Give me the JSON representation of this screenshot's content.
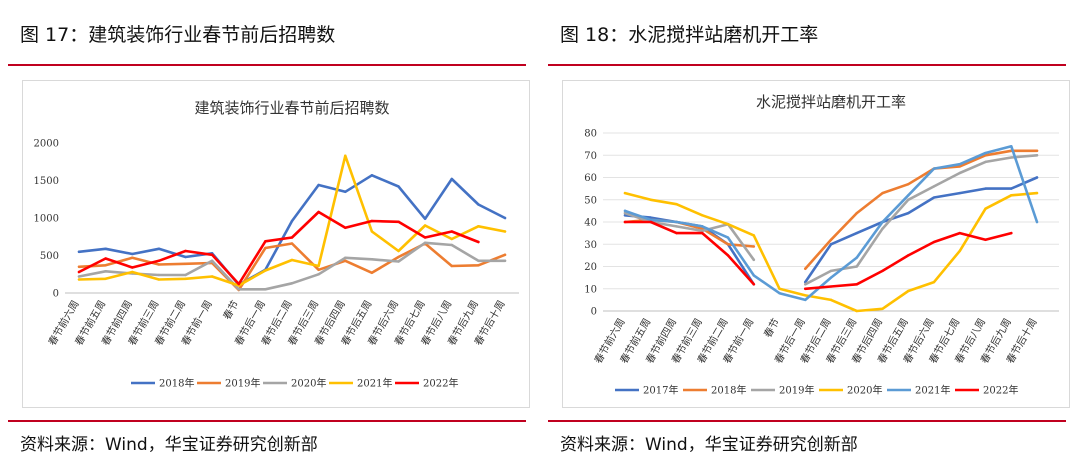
{
  "left": {
    "fig_title": "图 17：建筑装饰行业春节前后招聘数",
    "source": "资料来源：Wind，华宝证券研究创新部",
    "chart_data": {
      "type": "line",
      "title": "建筑装饰行业春节前后招聘数",
      "categories": [
        "春节前六周",
        "春节前五周",
        "春节前四周",
        "春节前三周",
        "春节前二周",
        "春节前一周",
        "春节",
        "春节后一周",
        "春节后二周",
        "春节后三周",
        "春节后四周",
        "春节后五周",
        "春节后六周",
        "春节后七周",
        "春节后八周",
        "春节后九周",
        "春节后十周"
      ],
      "ylim": [
        0,
        2000
      ],
      "yticks": [
        0,
        500,
        1000,
        1500,
        2000
      ],
      "legend_position": "bottom",
      "series": [
        {
          "name": "2018年",
          "color": "#4472c4",
          "values": [
            550,
            590,
            520,
            590,
            480,
            530,
            110,
            310,
            960,
            1440,
            1350,
            1570,
            1420,
            990,
            1520,
            1180,
            1000
          ]
        },
        {
          "name": "2019年",
          "color": "#ed7d31",
          "values": [
            350,
            370,
            470,
            380,
            390,
            400,
            40,
            600,
            660,
            310,
            430,
            270,
            480,
            660,
            360,
            370,
            510
          ]
        },
        {
          "name": "2020年",
          "color": "#a5a5a5",
          "values": [
            220,
            290,
            260,
            240,
            240,
            430,
            50,
            50,
            130,
            250,
            470,
            450,
            420,
            670,
            640,
            430,
            430
          ]
        },
        {
          "name": "2021年",
          "color": "#ffc000",
          "values": [
            180,
            190,
            280,
            180,
            190,
            220,
            100,
            300,
            440,
            360,
            1830,
            820,
            560,
            900,
            720,
            890,
            820
          ]
        },
        {
          "name": "2022年",
          "color": "#ff0000",
          "values": [
            280,
            460,
            340,
            430,
            560,
            510,
            120,
            690,
            740,
            1080,
            870,
            960,
            950,
            740,
            820,
            680,
            null
          ]
        }
      ]
    }
  },
  "right": {
    "fig_title": "图 18：水泥搅拌站磨机开工率",
    "source": "资料来源：Wind，华宝证券研究创新部",
    "chart_data": {
      "type": "line",
      "title": "水泥搅拌站磨机开工率",
      "categories": [
        "春节前六周",
        "春节前五周",
        "春节前四周",
        "春节前三周",
        "春节前二周",
        "春节前一周",
        "春节",
        "春节后一周",
        "春节后二周",
        "春节后三周",
        "春节后四周",
        "春节后五周",
        "春节后六周",
        "春节后七周",
        "春节后八周",
        "春节后九周",
        "春节后十周"
      ],
      "ylim": [
        0,
        80
      ],
      "yticks": [
        0,
        10,
        20,
        30,
        40,
        50,
        60,
        70,
        80
      ],
      "legend_position": "bottom",
      "series": [
        {
          "name": "2017年",
          "color": "#4472c4",
          "values": [
            43,
            42,
            40,
            38,
            30,
            12,
            null,
            13,
            30,
            35,
            40,
            44,
            51,
            53,
            55,
            55,
            60
          ]
        },
        {
          "name": "2018年",
          "color": "#ed7d31",
          "values": [
            40,
            41,
            40,
            37,
            30,
            29,
            null,
            19,
            32,
            44,
            53,
            57,
            64,
            65,
            70,
            72,
            72
          ]
        },
        {
          "name": "2019年",
          "color": "#a5a5a5",
          "values": [
            44,
            40,
            38,
            36,
            39,
            23,
            null,
            12,
            18,
            20,
            37,
            50,
            56,
            62,
            67,
            69,
            70
          ]
        },
        {
          "name": "2020年",
          "color": "#ffc000",
          "values": [
            53,
            50,
            48,
            43,
            39,
            34,
            10,
            7,
            5,
            0,
            1,
            9,
            13,
            27,
            46,
            52,
            53
          ]
        },
        {
          "name": "2021年",
          "color": "#5b9bd5",
          "values": [
            45,
            41,
            40,
            38,
            33,
            16,
            8,
            5,
            15,
            24,
            40,
            52,
            64,
            66,
            71,
            74,
            40
          ]
        },
        {
          "name": "2022年",
          "color": "#ff0000",
          "values": [
            40,
            40,
            35,
            35,
            25,
            12,
            null,
            10,
            11,
            12,
            18,
            25,
            31,
            35,
            32,
            35,
            null
          ]
        }
      ]
    }
  }
}
